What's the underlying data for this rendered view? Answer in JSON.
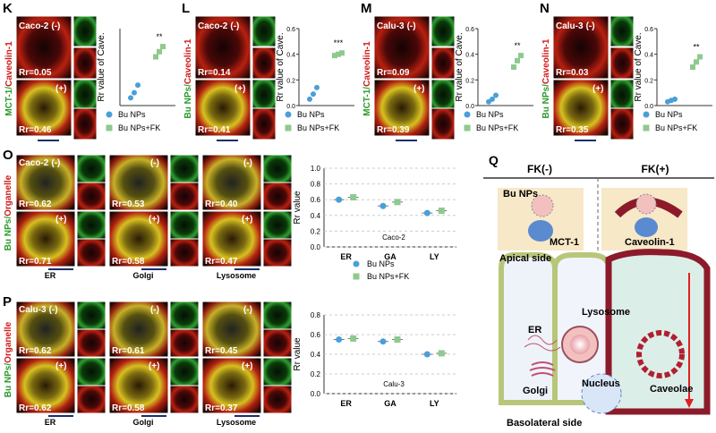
{
  "panels_top": [
    {
      "letter": "K",
      "cell": "Caco-2",
      "neg": "(-)",
      "pos": "(+)",
      "rr_neg": "Rr=0.05",
      "rr_pos": "Rr=0.46",
      "stain_a": "MCT-1/",
      "stain_b": "Caveolin-1",
      "chart": {
        "ylabel": "Rr value of Cave.",
        "ylim": [
          0,
          0.6
        ],
        "sig": "**",
        "series": [
          {
            "name": "Bu NPs",
            "color": "#4a9fd8",
            "values": [
              0.06,
              0.1,
              0.16
            ]
          },
          {
            "name": "Bu NPs+FK",
            "color": "#8fc98f",
            "values": [
              0.38,
              0.42,
              0.46
            ]
          }
        ]
      }
    },
    {
      "letter": "L",
      "cell": "Caco-2",
      "neg": "(-)",
      "pos": "(+)",
      "rr_neg": "Rr=0.14",
      "rr_pos": "Rr=0.41",
      "stain_a": "Bu NPs/",
      "stain_b": "Caveolin-1",
      "chart": {
        "ylabel": "Rr value of Cave.",
        "ylim": [
          0,
          0.6
        ],
        "yticks": [
          {
            "value": 0,
            "label": "0.0"
          },
          0.2,
          0.4,
          0.6
        ],
        "sig": "***",
        "series": [
          {
            "name": "Bu NPs",
            "color": "#4a9fd8",
            "values": [
              0.05,
              0.09,
              0.14
            ]
          },
          {
            "name": "Bu NPs+FK",
            "color": "#8fc98f",
            "values": [
              0.39,
              0.4,
              0.41
            ]
          }
        ]
      }
    },
    {
      "letter": "M",
      "cell": "Calu-3",
      "neg": "(-)",
      "pos": "(+)",
      "rr_neg": "Rr=0.09",
      "rr_pos": "Rr=0.39",
      "stain_a": "MCT-1/",
      "stain_b": "Caveolin-1",
      "chart": {
        "ylabel": "Rr value of Cave.",
        "ylim": [
          0,
          0.6
        ],
        "yticks": [
          {
            "value": 0,
            "label": "0.0"
          },
          0.2,
          0.4,
          0.6
        ],
        "sig": "**",
        "series": [
          {
            "name": "Bu NPs",
            "color": "#4a9fd8",
            "values": [
              0.03,
              0.05,
              0.08
            ]
          },
          {
            "name": "Bu NPs+FK",
            "color": "#8fc98f",
            "values": [
              0.3,
              0.35,
              0.39
            ]
          }
        ]
      }
    },
    {
      "letter": "N",
      "cell": "Calu-3",
      "neg": "(-)",
      "pos": "(+)",
      "rr_neg": "Rr=0.03",
      "rr_pos": "Rr=0.35",
      "stain_a": "Bu NPs/",
      "stain_b": "Caveolin-1",
      "chart": {
        "ylabel": "Rr value of Cave.",
        "ylim": [
          0,
          0.6
        ],
        "yticks": [
          {
            "value": 0,
            "label": "0.0"
          },
          0.2,
          0.4,
          0.6
        ],
        "sig": "**",
        "series": [
          {
            "name": "Bu NPs",
            "color": "#4a9fd8",
            "values": [
              0.03,
              0.04,
              0.05
            ]
          },
          {
            "name": "Bu NPs+FK",
            "color": "#8fc98f",
            "values": [
              0.3,
              0.34,
              0.38
            ]
          }
        ]
      }
    }
  ],
  "panels_mid": [
    {
      "letter": "O",
      "cell": "Caco-2",
      "neg": "(-)",
      "pos": "(+)",
      "stain_a": "Bu NPs/",
      "stain_b": "Organelle",
      "organelles": [
        "ER",
        "Golgi",
        "Lysosome"
      ],
      "rr_neg": [
        "Rr=0.62",
        "Rr=0.53",
        "Rr=0.40"
      ],
      "rr_pos": [
        "Rr=0.71",
        "Rr=0.58",
        "Rr=0.47"
      ],
      "chart": {
        "ylabel": "Rr value",
        "label": "Caco-2",
        "categories": [
          "ER",
          "GA",
          "LY"
        ],
        "ylim": [
          0,
          1
        ],
        "yticks": [
          {
            "value": 0,
            "label": "0.0"
          },
          0.2,
          0.4,
          0.6,
          0.8,
          {
            "value": 1,
            "label": "1.0"
          }
        ],
        "series": [
          {
            "name": "Bu NPs",
            "color": "#4a9fd8",
            "values": [
              0.6,
              0.52,
              0.43
            ]
          },
          {
            "name": "Bu NPs+FK",
            "color": "#8fc98f",
            "values": [
              0.63,
              0.57,
              0.46
            ]
          }
        ]
      }
    },
    {
      "letter": "P",
      "cell": "Calu-3",
      "neg": "(-)",
      "pos": "(+)",
      "stain_a": "Bu NPs/",
      "stain_b": "Organelle",
      "organelles": [
        "ER",
        "Golgi",
        "Lysosome"
      ],
      "rr_neg": [
        "Rr=0.62",
        "Rr=0.61",
        "Rr=0.45"
      ],
      "rr_pos": [
        "Rr=0.62",
        "Rr=0.58",
        "Rr=0.37"
      ],
      "chart": {
        "ylabel": "Rr value",
        "label": "Calu-3",
        "categories": [
          "ER",
          "GA",
          "LY"
        ],
        "ylim": [
          0,
          0.8
        ],
        "yticks": [
          {
            "value": 0,
            "label": "0.0"
          },
          0.2,
          0.4,
          0.6,
          0.8
        ],
        "series": [
          {
            "color": "#4a9fd8",
            "values": [
              0.55,
              0.53,
              0.4
            ]
          },
          {
            "color": "#8fc98f",
            "values": [
              0.56,
              0.55,
              0.41
            ]
          }
        ]
      }
    }
  ],
  "diagram": {
    "letter": "Q",
    "left": "FK(-)",
    "right": "FK(+)",
    "nps": "Bu NPs",
    "mct": "MCT-1",
    "cav": "Caveolin-1",
    "apical": "Apical side",
    "lysosome": "Lysosome",
    "er": "ER",
    "caveolae": "Caveolae",
    "golgi": "Golgi",
    "nucleus": "Nucleus",
    "basolateral": "Basolateral side"
  }
}
